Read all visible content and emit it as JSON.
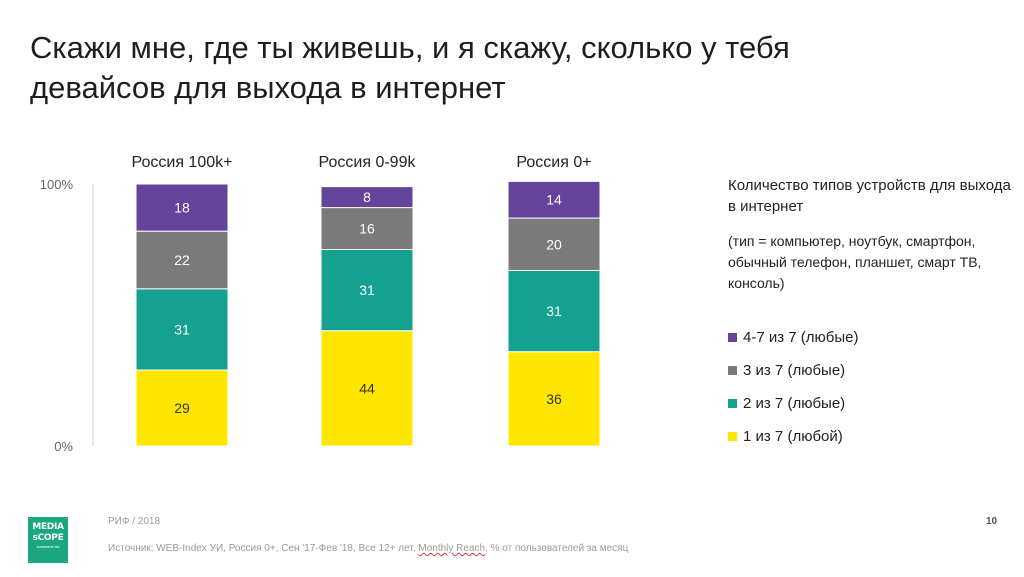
{
  "title_line1": "Скажи мне, где ты живешь, и я скажу, сколько у тебя",
  "title_line2": "девайсов для выхода в интернет",
  "chart_data": {
    "type": "bar",
    "stacked": true,
    "categories": [
      "Россия 100k+",
      "Россия 0-99k",
      "Россия 0+"
    ],
    "series": [
      {
        "name": "1 из 7 (любой)",
        "color": "#ffe600",
        "values": [
          29,
          44,
          36
        ]
      },
      {
        "name": "2 из 7 (любые)",
        "color": "#14a190",
        "values": [
          31,
          31,
          31
        ]
      },
      {
        "name": "3 из 7 (любые)",
        "color": "#7a7a7a",
        "values": [
          22,
          16,
          20
        ]
      },
      {
        "name": "4-7 из 7 (любые)",
        "color": "#63449a",
        "values": [
          18,
          8,
          14
        ]
      }
    ],
    "ylim": [
      0,
      100
    ],
    "yticks": [
      "0%",
      "100%"
    ],
    "legend_title": "Количество типов устройств для выхода в интернет",
    "legend_note": "(тип = компьютер, ноутбук, смартфон, обычный телефон, планшет, смарт ТВ, консоль)",
    "legend_position": "right"
  },
  "logo": {
    "line1": "MEDIA",
    "line2": "sCOPE",
    "tagline": "POWERED BY TNS"
  },
  "footer": {
    "org": "РИФ / 2018",
    "page": "10",
    "source_before": "Источник: WEB-Index УИ, Россия 0+, Сен '17-Фев '18, Все 12+ лет, ",
    "source_ul": "Monthly Reach",
    "source_after": ", % от пользователей за месяц"
  }
}
